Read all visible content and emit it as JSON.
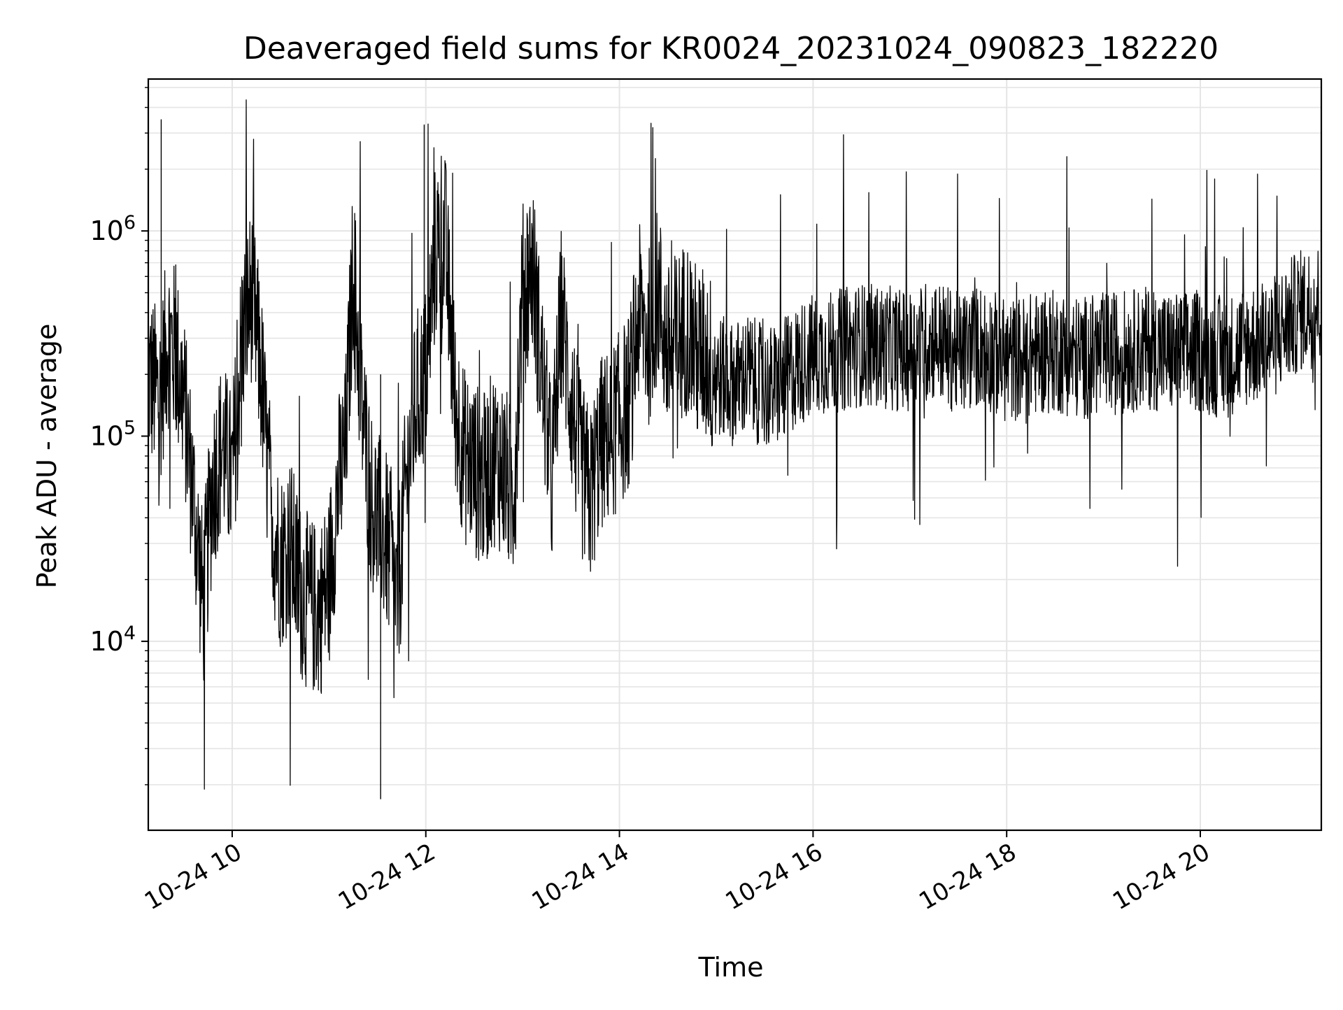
{
  "chart_data": {
    "type": "line",
    "title": "Deaveraged field sums for KR0024_20231024_090823_182220",
    "xlabel": "Time",
    "ylabel": "Peak ADU - average",
    "yscale": "log",
    "xlim": [
      "2023-10-24 09:08",
      "2023-10-24 21:15"
    ],
    "ylim": [
      1200,
      5500000
    ],
    "grid": true,
    "line_color": "#000000",
    "grid_color": "#e5e5e5",
    "x_ticks": [
      {
        "t": "2023-10-24 10:00",
        "label": "10-24 10"
      },
      {
        "t": "2023-10-24 12:00",
        "label": "10-24 12"
      },
      {
        "t": "2023-10-24 14:00",
        "label": "10-24 14"
      },
      {
        "t": "2023-10-24 16:00",
        "label": "10-24 16"
      },
      {
        "t": "2023-10-24 18:00",
        "label": "10-24 18"
      },
      {
        "t": "2023-10-24 20:00",
        "label": "10-24 20"
      }
    ],
    "y_ticks": [
      {
        "value": 10000,
        "base": "10",
        "exp": "4"
      },
      {
        "value": 100000,
        "base": "10",
        "exp": "5"
      },
      {
        "value": 1000000,
        "base": "10",
        "exp": "6"
      }
    ],
    "series": [
      {
        "x": [
          "2023-10-24 09:08",
          "2023-10-24 09:15",
          "2023-10-24 09:20",
          "2023-10-24 09:25",
          "2023-10-24 09:30",
          "2023-10-24 09:36",
          "2023-10-24 09:42",
          "2023-10-24 09:48",
          "2023-10-24 09:54",
          "2023-10-24 10:00",
          "2023-10-24 10:06",
          "2023-10-24 10:12",
          "2023-10-24 10:18",
          "2023-10-24 10:24",
          "2023-10-24 10:30",
          "2023-10-24 10:36",
          "2023-10-24 10:42",
          "2023-10-24 10:48",
          "2023-10-24 10:54",
          "2023-10-24 11:00",
          "2023-10-24 11:06",
          "2023-10-24 11:10",
          "2023-10-24 11:15",
          "2023-10-24 11:20",
          "2023-10-24 11:26",
          "2023-10-24 11:30",
          "2023-10-24 11:36",
          "2023-10-24 11:42",
          "2023-10-24 11:48",
          "2023-10-24 11:54",
          "2023-10-24 12:00",
          "2023-10-24 12:06",
          "2023-10-24 12:12",
          "2023-10-24 12:18",
          "2023-10-24 12:24",
          "2023-10-24 12:30",
          "2023-10-24 12:36",
          "2023-10-24 12:42",
          "2023-10-24 12:48",
          "2023-10-24 12:54",
          "2023-10-24 13:00",
          "2023-10-24 13:06",
          "2023-10-24 13:12",
          "2023-10-24 13:18",
          "2023-10-24 13:24",
          "2023-10-24 13:30",
          "2023-10-24 13:36",
          "2023-10-24 13:42",
          "2023-10-24 13:48",
          "2023-10-24 13:54",
          "2023-10-24 14:00",
          "2023-10-24 14:06",
          "2023-10-24 14:12",
          "2023-10-24 14:18",
          "2023-10-24 14:24",
          "2023-10-24 14:30",
          "2023-10-24 14:36",
          "2023-10-24 14:42",
          "2023-10-24 14:48",
          "2023-10-24 14:54",
          "2023-10-24 15:00",
          "2023-10-24 15:10",
          "2023-10-24 15:20",
          "2023-10-24 15:30",
          "2023-10-24 15:40",
          "2023-10-24 15:50",
          "2023-10-24 16:00",
          "2023-10-24 16:15",
          "2023-10-24 16:30",
          "2023-10-24 16:45",
          "2023-10-24 17:00",
          "2023-10-24 17:15",
          "2023-10-24 17:30",
          "2023-10-24 17:45",
          "2023-10-24 18:00",
          "2023-10-24 18:15",
          "2023-10-24 18:30",
          "2023-10-24 18:45",
          "2023-10-24 19:00",
          "2023-10-24 19:15",
          "2023-10-24 19:30",
          "2023-10-24 19:45",
          "2023-10-24 20:00",
          "2023-10-24 20:15",
          "2023-10-24 20:30",
          "2023-10-24 20:45",
          "2023-10-24 21:00",
          "2023-10-24 21:15"
        ],
        "y": [
          200000,
          150000,
          300000,
          250000,
          150000,
          50000,
          15000,
          60000,
          90000,
          60000,
          300000,
          500000,
          200000,
          40000,
          25000,
          30000,
          18000,
          15000,
          14000,
          20000,
          60000,
          80000,
          700000,
          150000,
          50000,
          40000,
          30000,
          15000,
          60000,
          150000,
          200000,
          800000,
          900000,
          150000,
          80000,
          70000,
          60000,
          80000,
          70000,
          50000,
          500000,
          700000,
          200000,
          60000,
          400000,
          150000,
          70000,
          50000,
          90000,
          100000,
          120000,
          150000,
          400000,
          300000,
          500000,
          250000,
          300000,
          350000,
          250000,
          250000,
          200000,
          180000,
          200000,
          170000,
          180000,
          220000,
          250000,
          260000,
          280000,
          270000,
          260000,
          300000,
          250000,
          280000,
          230000,
          250000,
          260000,
          240000,
          250000,
          260000,
          270000,
          250000,
          260000,
          240000,
          280000,
          300000,
          400000,
          450000
        ],
        "envelope": "dense per-frame trace fluctuating roughly one decade about this level; isolated spikes reach 3.5e6 near 09:16 and 3.3e6 near 12:00, dips reach 1.7e3 near 11:32"
      }
    ]
  }
}
